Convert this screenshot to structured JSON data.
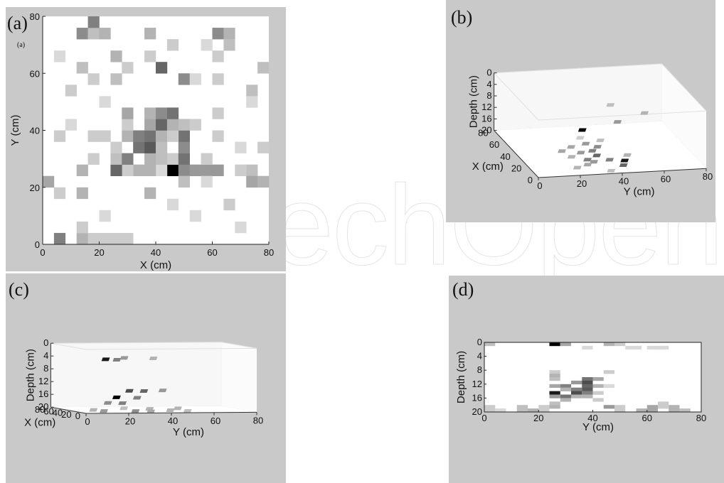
{
  "watermark": "echOpen",
  "panels": {
    "a": {
      "label": "(a)",
      "small_label": "(a)"
    },
    "b": {
      "label": "(b)"
    },
    "c": {
      "label": "(c)"
    },
    "d": {
      "label": "(d)"
    }
  },
  "colors": {
    "panel_bg": "#c9c9c9",
    "plot_bg": "#ffffff",
    "max_cell": "#000000"
  },
  "chart_data": [
    {
      "id": "a",
      "type": "heatmap",
      "title": "",
      "xlabel": "X (cm)",
      "ylabel": "Y (cm)",
      "xlim": [
        0,
        80
      ],
      "ylim": [
        0,
        80
      ],
      "xticks": [
        "0",
        "20",
        "40",
        "60",
        "80"
      ],
      "yticks": [
        "0",
        "20",
        "40",
        "60",
        "80"
      ],
      "cell_size": 4,
      "colormap": "gray-inverted",
      "cells": [
        [
          44,
          24,
          1.0
        ],
        [
          48,
          24,
          0.45
        ],
        [
          52,
          24,
          0.4
        ],
        [
          56,
          24,
          0.4
        ],
        [
          60,
          24,
          0.4
        ],
        [
          40,
          24,
          0.15
        ],
        [
          36,
          24,
          0.3
        ],
        [
          32,
          24,
          0.3
        ],
        [
          28,
          24,
          0.2
        ],
        [
          24,
          24,
          0.6
        ],
        [
          72,
          24,
          0.25
        ],
        [
          68,
          24,
          0.2
        ],
        [
          12,
          24,
          0.3
        ],
        [
          24,
          28,
          0.25
        ],
        [
          28,
          28,
          0.5
        ],
        [
          36,
          28,
          0.3
        ],
        [
          40,
          28,
          0.25
        ],
        [
          44,
          28,
          0.2
        ],
        [
          48,
          28,
          0.55
        ],
        [
          16,
          28,
          0.2
        ],
        [
          32,
          32,
          0.55
        ],
        [
          36,
          32,
          0.65
        ],
        [
          48,
          32,
          0.45
        ],
        [
          24,
          32,
          0.2
        ],
        [
          40,
          32,
          0.25
        ],
        [
          28,
          36,
          0.3
        ],
        [
          32,
          36,
          0.5
        ],
        [
          36,
          36,
          0.55
        ],
        [
          40,
          36,
          0.3
        ],
        [
          48,
          36,
          0.55
        ],
        [
          44,
          36,
          0.2
        ],
        [
          16,
          36,
          0.2
        ],
        [
          20,
          36,
          0.2
        ],
        [
          36,
          40,
          0.35
        ],
        [
          40,
          40,
          0.6
        ],
        [
          44,
          40,
          0.3
        ],
        [
          48,
          40,
          0.25
        ],
        [
          52,
          40,
          0.2
        ],
        [
          28,
          40,
          0.2
        ],
        [
          28,
          44,
          0.35
        ],
        [
          36,
          44,
          0.3
        ],
        [
          40,
          44,
          0.45
        ],
        [
          44,
          44,
          0.55
        ],
        [
          60,
          44,
          0.2
        ],
        [
          40,
          60,
          0.6
        ],
        [
          48,
          56,
          0.45
        ],
        [
          16,
          56,
          0.2
        ],
        [
          24,
          56,
          0.25
        ],
        [
          60,
          56,
          0.2
        ],
        [
          72,
          52,
          0.25
        ],
        [
          72,
          48,
          0.15
        ],
        [
          12,
          72,
          0.45
        ],
        [
          16,
          72,
          0.25
        ],
        [
          20,
          72,
          0.3
        ],
        [
          16,
          76,
          0.5
        ],
        [
          36,
          72,
          0.3
        ],
        [
          60,
          72,
          0.45
        ],
        [
          64,
          72,
          0.3
        ],
        [
          64,
          68,
          0.25
        ],
        [
          24,
          64,
          0.3
        ],
        [
          28,
          60,
          0.2
        ],
        [
          36,
          64,
          0.2
        ],
        [
          12,
          60,
          0.25
        ],
        [
          4,
          64,
          0.15
        ],
        [
          60,
          64,
          0.2
        ],
        [
          76,
          60,
          0.25
        ],
        [
          0,
          20,
          0.35
        ],
        [
          4,
          16,
          0.2
        ],
        [
          12,
          16,
          0.3
        ],
        [
          36,
          16,
          0.3
        ],
        [
          48,
          20,
          0.25
        ],
        [
          72,
          20,
          0.35
        ],
        [
          76,
          20,
          0.3
        ],
        [
          56,
          20,
          0.15
        ],
        [
          4,
          0,
          0.5
        ],
        [
          12,
          0,
          0.3
        ],
        [
          16,
          0,
          0.2
        ],
        [
          20,
          0,
          0.2
        ],
        [
          24,
          0,
          0.2
        ],
        [
          28,
          0,
          0.2
        ],
        [
          12,
          4,
          0.2
        ],
        [
          68,
          4,
          0.15
        ],
        [
          8,
          52,
          0.2
        ],
        [
          20,
          48,
          0.15
        ],
        [
          60,
          36,
          0.2
        ],
        [
          68,
          32,
          0.15
        ],
        [
          56,
          28,
          0.2
        ],
        [
          52,
          56,
          0.15
        ],
        [
          44,
          68,
          0.2
        ],
        [
          56,
          68,
          0.15
        ],
        [
          8,
          40,
          0.15
        ],
        [
          4,
          36,
          0.2
        ],
        [
          64,
          12,
          0.2
        ],
        [
          76,
          32,
          0.2
        ],
        [
          20,
          8,
          0.15
        ],
        [
          52,
          8,
          0.15
        ],
        [
          44,
          12,
          0.15
        ]
      ]
    },
    {
      "id": "b",
      "type": "heatmap",
      "view": "3d-perspective",
      "xlabel": "X (cm)",
      "ylabel": "Y (cm)",
      "zlabel": "Depth (cm)",
      "xlim": [
        0,
        80
      ],
      "ylim": [
        0,
        80
      ],
      "zlim": [
        0,
        20
      ],
      "xticks": [
        "0",
        "20",
        "40",
        "60",
        "80"
      ],
      "yticks": [
        "0",
        "20",
        "40",
        "60",
        "80"
      ],
      "zticks": [
        "0",
        "4",
        "8",
        "12",
        "16",
        "20"
      ],
      "voxels": [
        [
          12,
          44,
          20,
          0.6
        ],
        [
          10,
          44,
          18,
          0.9
        ],
        [
          22,
          40,
          20,
          0.5
        ],
        [
          30,
          36,
          20,
          0.6
        ],
        [
          38,
          36,
          20,
          0.5
        ],
        [
          24,
          30,
          20,
          0.5
        ],
        [
          26,
          28,
          10,
          1.0
        ],
        [
          20,
          32,
          20,
          0.4
        ],
        [
          36,
          30,
          20,
          0.4
        ],
        [
          44,
          40,
          20,
          0.45
        ],
        [
          50,
          36,
          20,
          0.4
        ],
        [
          16,
          28,
          20,
          0.35
        ],
        [
          40,
          22,
          20,
          0.35
        ],
        [
          30,
          24,
          20,
          0.3
        ],
        [
          46,
          28,
          20,
          0.35
        ],
        [
          8,
          40,
          4,
          0.4
        ],
        [
          20,
          56,
          4,
          0.3
        ],
        [
          36,
          44,
          4,
          0.25
        ],
        [
          12,
          22,
          20,
          0.3
        ],
        [
          4,
          36,
          20,
          0.25
        ],
        [
          28,
          50,
          20,
          0.3
        ],
        [
          54,
          44,
          20,
          0.25
        ],
        [
          60,
          36,
          20,
          0.2
        ]
      ]
    },
    {
      "id": "c",
      "type": "heatmap",
      "view": "3d-perspective",
      "xlabel": "X (cm)",
      "ylabel": "Y (cm)",
      "zlabel": "Depth (cm)",
      "xlim": [
        0,
        80
      ],
      "ylim": [
        0,
        80
      ],
      "zlim": [
        0,
        20
      ],
      "xticks": [
        "0",
        "20",
        "40",
        "60",
        "80"
      ],
      "yticks": [
        "0",
        "20",
        "40",
        "60",
        "80"
      ],
      "zticks": [
        "0",
        "4",
        "8",
        "12",
        "16",
        "20"
      ],
      "voxels": [
        [
          30,
          16,
          4,
          0.9
        ],
        [
          24,
          20,
          4,
          0.5
        ],
        [
          46,
          28,
          4,
          0.4
        ],
        [
          38,
          40,
          4,
          0.3
        ],
        [
          34,
          22,
          16,
          1.0
        ],
        [
          34,
          28,
          14,
          0.7
        ],
        [
          30,
          34,
          14,
          0.6
        ],
        [
          40,
          26,
          18,
          0.5
        ],
        [
          26,
          30,
          16,
          0.5
        ],
        [
          44,
          20,
          18,
          0.45
        ],
        [
          20,
          28,
          20,
          0.45
        ],
        [
          36,
          44,
          14,
          0.4
        ],
        [
          24,
          14,
          20,
          0.4
        ],
        [
          46,
          40,
          20,
          0.3
        ],
        [
          14,
          34,
          20,
          0.35
        ],
        [
          50,
          54,
          20,
          0.3
        ],
        [
          38,
          12,
          20,
          0.3
        ],
        [
          28,
          46,
          20,
          0.3
        ],
        [
          56,
          30,
          20,
          0.25
        ],
        [
          18,
          52,
          20,
          0.25
        ]
      ]
    },
    {
      "id": "d",
      "type": "heatmap",
      "view": "side",
      "xlabel": "Y (cm)",
      "ylabel": "Depth (cm)",
      "xlim": [
        0,
        80
      ],
      "ylim": [
        0,
        20
      ],
      "xticks": [
        "0",
        "20",
        "40",
        "60",
        "80"
      ],
      "yticks": [
        "0",
        "4",
        "8",
        "12",
        "16",
        "20"
      ],
      "cells": [
        [
          24,
          0,
          1.0,
          4,
          1
        ],
        [
          28,
          0,
          0.35,
          4,
          1
        ],
        [
          0,
          0,
          0.25,
          4,
          1
        ],
        [
          44,
          0,
          0.3,
          4,
          1
        ],
        [
          48,
          0,
          0.2,
          4,
          1
        ],
        [
          52,
          1,
          0.15,
          6,
          1
        ],
        [
          60,
          1,
          0.15,
          6,
          1
        ],
        [
          64,
          1,
          0.15,
          4,
          1
        ],
        [
          36,
          1,
          0.15,
          4,
          1
        ],
        [
          24,
          8,
          0.2,
          4,
          1
        ],
        [
          24,
          9,
          0.3,
          4,
          1
        ],
        [
          24,
          10,
          0.25,
          4,
          1
        ],
        [
          24,
          12,
          0.35,
          4,
          1
        ],
        [
          24,
          14,
          0.9,
          4,
          1
        ],
        [
          24,
          15,
          0.4,
          4,
          1
        ],
        [
          24,
          17,
          0.25,
          4,
          1
        ],
        [
          24,
          18,
          0.3,
          4,
          1
        ],
        [
          28,
          12,
          0.5,
          4,
          1
        ],
        [
          28,
          13,
          0.3,
          4,
          1
        ],
        [
          28,
          15,
          0.55,
          4,
          1
        ],
        [
          28,
          16,
          0.3,
          4,
          1
        ],
        [
          32,
          11,
          0.4,
          4,
          1
        ],
        [
          32,
          13,
          0.5,
          4,
          1
        ],
        [
          32,
          14,
          0.7,
          4,
          1
        ],
        [
          32,
          15,
          0.3,
          4,
          1
        ],
        [
          36,
          10,
          0.55,
          4,
          1
        ],
        [
          36,
          11,
          0.7,
          4,
          1
        ],
        [
          36,
          12,
          0.6,
          4,
          1
        ],
        [
          36,
          13,
          0.65,
          4,
          1
        ],
        [
          36,
          14,
          0.5,
          4,
          1
        ],
        [
          36,
          15,
          0.3,
          4,
          1
        ],
        [
          40,
          10,
          0.35,
          4,
          1
        ],
        [
          40,
          12,
          0.3,
          4,
          1
        ],
        [
          40,
          14,
          0.2,
          4,
          1
        ],
        [
          40,
          16,
          0.2,
          4,
          1
        ],
        [
          44,
          8,
          0.2,
          4,
          1
        ],
        [
          44,
          12,
          0.15,
          4,
          1
        ],
        [
          44,
          18,
          0.4,
          4,
          1
        ],
        [
          0,
          18,
          0.2,
          4,
          2
        ],
        [
          4,
          19,
          0.15,
          4,
          1
        ],
        [
          12,
          18,
          0.25,
          4,
          2
        ],
        [
          16,
          19,
          0.3,
          4,
          1
        ],
        [
          20,
          18,
          0.2,
          4,
          2
        ],
        [
          48,
          18,
          0.2,
          4,
          2
        ],
        [
          56,
          19,
          0.3,
          4,
          1
        ],
        [
          60,
          18,
          0.35,
          4,
          2
        ],
        [
          64,
          17,
          0.2,
          4,
          2
        ],
        [
          68,
          18,
          0.3,
          4,
          2
        ],
        [
          72,
          19,
          0.25,
          4,
          1
        ]
      ]
    }
  ]
}
